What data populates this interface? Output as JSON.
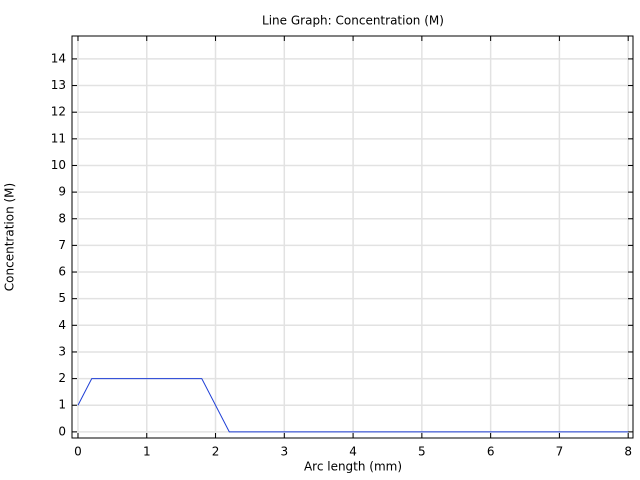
{
  "chart_data": {
    "type": "line",
    "title": "Line Graph: Concentration (M)",
    "x_label": "Arc length (mm)",
    "y_label": "Concentration (M)",
    "x": [
      0,
      0.2,
      1.8,
      2.2,
      8
    ],
    "series": [
      {
        "name": "Concentration",
        "color": "#1f3fd6",
        "values": [
          1,
          2,
          2,
          0,
          0
        ]
      }
    ],
    "xlim": [
      -0.087,
      8.07
    ],
    "ylim": [
      -0.23,
      14.86
    ],
    "xticks": [
      0,
      1,
      2,
      3,
      4,
      5,
      6,
      7,
      8
    ],
    "yticks": [
      0,
      1,
      2,
      3,
      4,
      5,
      6,
      7,
      8,
      9,
      10,
      11,
      12,
      13,
      14
    ],
    "grid": true
  }
}
